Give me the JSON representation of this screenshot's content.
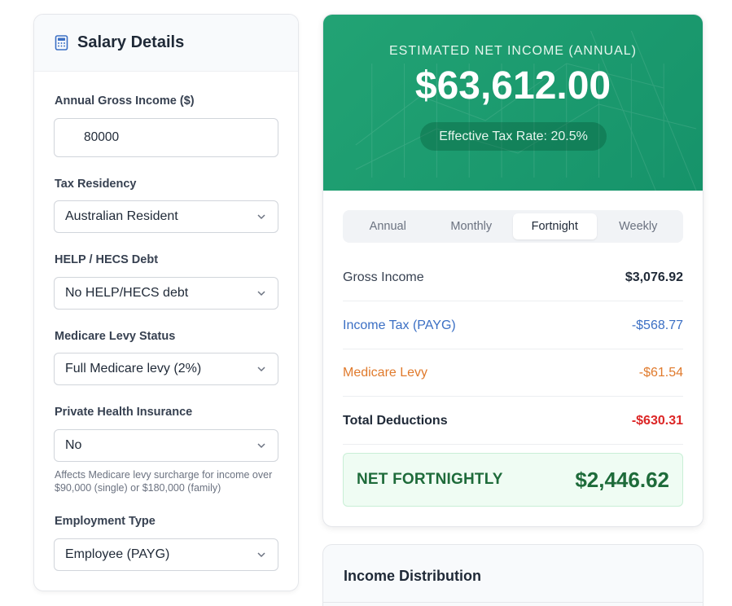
{
  "salary_details": {
    "title": "Salary Details",
    "icon": "calculator-icon",
    "fields": {
      "annual_gross": {
        "label": "Annual Gross Income ($)",
        "value": "80000"
      },
      "tax_residency": {
        "label": "Tax Residency",
        "value": "Australian Resident"
      },
      "help_debt": {
        "label": "HELP / HECS Debt",
        "value": "No HELP/HECS debt"
      },
      "medicare_status": {
        "label": "Medicare Levy Status",
        "value": "Full Medicare levy (2%)"
      },
      "private_health": {
        "label": "Private Health Insurance",
        "value": "No",
        "help": "Affects Medicare levy surcharge for income over $90,000 (single) or $180,000 (family)"
      },
      "employment_type": {
        "label": "Employment Type",
        "value": "Employee (PAYG)"
      }
    }
  },
  "summary": {
    "hero_label": "ESTIMATED NET INCOME (ANNUAL)",
    "hero_amount": "$63,612.00",
    "effective_rate": "Effective Tax Rate: 20.5%",
    "tabs": [
      "Annual",
      "Monthly",
      "Fortnight",
      "Weekly"
    ],
    "active_tab": "Fortnight",
    "rows": {
      "gross": {
        "label": "Gross Income",
        "value": "$3,076.92"
      },
      "tax": {
        "label": "Income Tax (PAYG)",
        "value": "-$568.77"
      },
      "medicare": {
        "label": "Medicare Levy",
        "value": "-$61.54"
      },
      "total": {
        "label": "Total Deductions",
        "value": "-$630.31"
      }
    },
    "net": {
      "label": "NET FORTNIGHTLY",
      "value": "$2,446.62"
    }
  },
  "distribution": {
    "title": "Income Distribution"
  },
  "colors": {
    "hero": "#1f9e6f",
    "tax": "#3b6fc4",
    "medicare": "#e07a2c",
    "deduction": "#dc2626",
    "net": "#1e6b3a"
  }
}
